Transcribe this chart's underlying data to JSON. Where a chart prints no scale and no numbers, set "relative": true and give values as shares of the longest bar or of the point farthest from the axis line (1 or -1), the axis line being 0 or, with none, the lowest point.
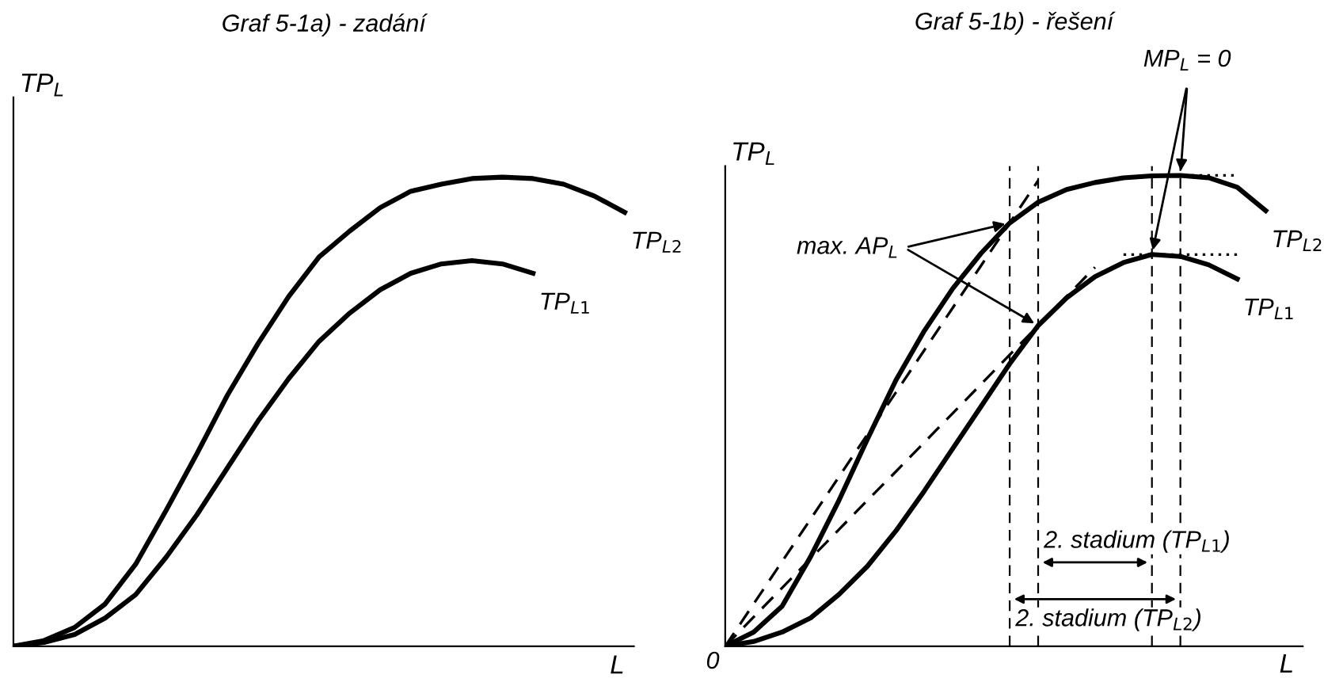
{
  "chart_data": [
    {
      "type": "line",
      "title": "Graf 5-1a) - zadání",
      "xlabel": "L",
      "ylabel": "TP$_{L}$",
      "relative": true,
      "categories": [
        null,
        null,
        null,
        null,
        null,
        null,
        null,
        null,
        null,
        null,
        null,
        null,
        null,
        null,
        null,
        null,
        null,
        null,
        null,
        null,
        null
      ],
      "series": [
        {
          "name": "TP$_{L2}$",
          "color": "#000000",
          "values": [
            0,
            0.012,
            0.04,
            0.09,
            0.175,
            0.29,
            0.41,
            0.535,
            0.645,
            0.745,
            0.83,
            0.885,
            0.935,
            0.97,
            0.985,
            0.997,
            1,
            0.997,
            0.985,
            0.96,
            0.925
          ]
        },
        {
          "name": "TP$_{L1}$",
          "color": "#000000",
          "values": [
            0,
            0.008,
            0.025,
            0.06,
            0.11,
            0.19,
            0.28,
            0.38,
            0.48,
            0.57,
            0.65,
            0.71,
            0.76,
            0.795,
            0.815,
            0.822,
            0.815,
            0.795,
            null,
            null,
            null
          ]
        }
      ]
    },
    {
      "type": "line",
      "title": "Graf 5-1b) - řešení",
      "xlabel": "L",
      "ylabel": "TP$_{L}$",
      "relative": true,
      "categories": [
        null,
        null,
        null,
        null,
        null,
        null,
        null,
        null,
        null,
        null,
        null,
        null,
        null,
        null,
        null,
        null,
        null,
        null,
        null,
        null,
        null
      ],
      "series": [
        {
          "name": "TP$_{L2}$",
          "color": "#000000",
          "values": [
            0,
            0.03,
            0.085,
            0.19,
            0.31,
            0.44,
            0.565,
            0.67,
            0.76,
            0.835,
            0.899,
            0.943,
            0.97,
            0.985,
            0.995,
            0.999,
            1,
            0.995,
            0.975,
            0.925,
            null
          ]
        },
        {
          "name": "TP$_{L1}$",
          "color": "#000000",
          "values": [
            0,
            0.01,
            0.03,
            0.06,
            0.11,
            0.17,
            0.245,
            0.33,
            0.42,
            0.51,
            0.6,
            0.681,
            0.74,
            0.785,
            0.815,
            0.832,
            0.828,
            0.81,
            0.78,
            null,
            null
          ]
        },
        {
          "color": "#000000",
          "line_style": "dashed",
          "values": [
            0,
            0.09,
            0.18,
            0.27,
            0.36,
            0.45,
            0.539,
            0.629,
            0.719,
            0.809,
            0.899,
            0.989,
            null,
            null,
            null,
            null,
            null,
            null,
            null,
            null,
            null
          ]
        },
        {
          "color": "#000000",
          "line_style": "dashed",
          "values": [
            0,
            0.062,
            0.124,
            0.186,
            0.248,
            0.31,
            0.371,
            0.433,
            0.495,
            0.557,
            0.619,
            0.681,
            0.743,
            0.805,
            null,
            null,
            null,
            null,
            null,
            null,
            null
          ]
        },
        {
          "color": "#000000",
          "line_style": "dotted",
          "values": [
            null,
            null,
            null,
            null,
            null,
            null,
            null,
            null,
            null,
            null,
            null,
            null,
            null,
            null,
            null,
            1,
            1,
            1,
            1,
            null,
            null
          ]
        },
        {
          "color": "#000000",
          "line_style": "dotted",
          "values": [
            null,
            null,
            null,
            null,
            null,
            null,
            null,
            null,
            null,
            null,
            null,
            null,
            null,
            null,
            0.832,
            0.832,
            0.832,
            0.832,
            0.832,
            null,
            null
          ]
        }
      ],
      "annotations": [
        "0",
        "max. AP$_{L}$",
        "MP$_{L}$ = 0",
        "2. stadium (TP$_{L1}$)",
        "2. stadium (TP$_{L2}$)"
      ]
    }
  ]
}
